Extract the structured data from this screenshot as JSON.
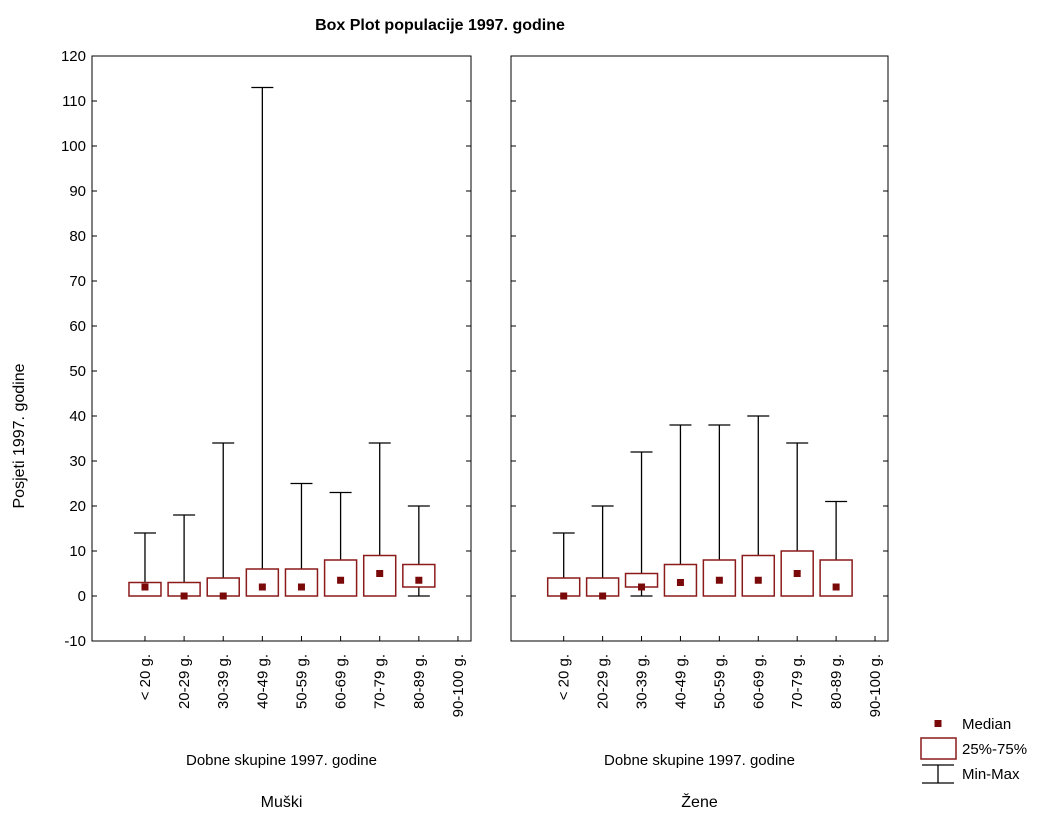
{
  "chart_data": {
    "type": "boxplot",
    "title": "Box Plot populacije 1997. godine",
    "ylabel": "Posjeti 1997. godine",
    "ylim": [
      -10,
      120
    ],
    "yticks": [
      -10,
      0,
      10,
      20,
      30,
      40,
      50,
      60,
      70,
      80,
      90,
      100,
      110,
      120
    ],
    "categories": [
      "< 20 g.",
      "20-29 g.",
      "30-39 g.",
      "40-49 g.",
      "50-59 g.",
      "60-69 g.",
      "70-79 g.",
      "80-89 g.",
      "90-100 g."
    ],
    "panels": [
      {
        "name": "Muški",
        "xlabel": "Dobne skupine 1997. godine",
        "boxes": [
          {
            "min": 0,
            "q1": 0,
            "median": 2,
            "q3": 3,
            "max": 14
          },
          {
            "min": 0,
            "q1": 0,
            "median": 0,
            "q3": 3,
            "max": 18
          },
          {
            "min": 0,
            "q1": 0,
            "median": 0,
            "q3": 4,
            "max": 34
          },
          {
            "min": 0,
            "q1": 0,
            "median": 2,
            "q3": 6,
            "max": 113
          },
          {
            "min": 0,
            "q1": 0,
            "median": 2,
            "q3": 6,
            "max": 25
          },
          {
            "min": 0,
            "q1": 0,
            "median": 3.5,
            "q3": 8,
            "max": 23
          },
          {
            "min": 0,
            "q1": 0,
            "median": 5,
            "q3": 9,
            "max": 34
          },
          {
            "min": 0,
            "q1": 2,
            "median": 3.5,
            "q3": 7,
            "max": 20
          },
          null
        ]
      },
      {
        "name": "Žene",
        "xlabel": "Dobne skupine 1997. godine",
        "boxes": [
          {
            "min": 0,
            "q1": 0,
            "median": 0,
            "q3": 4,
            "max": 14
          },
          {
            "min": 0,
            "q1": 0,
            "median": 0,
            "q3": 4,
            "max": 20
          },
          {
            "min": 0,
            "q1": 2,
            "median": 2,
            "q3": 5,
            "max": 32
          },
          {
            "min": 0,
            "q1": 0,
            "median": 3,
            "q3": 7,
            "max": 38
          },
          {
            "min": 0,
            "q1": 0,
            "median": 3.5,
            "q3": 8,
            "max": 38
          },
          {
            "min": 0,
            "q1": 0,
            "median": 3.5,
            "q3": 9,
            "max": 40
          },
          {
            "min": 0,
            "q1": 0,
            "median": 5,
            "q3": 10,
            "max": 34
          },
          {
            "min": 0,
            "q1": 0,
            "median": 2,
            "q3": 8,
            "max": 21
          },
          null
        ]
      }
    ],
    "legend": {
      "placement": "bottom-right",
      "items": [
        "Median",
        "25%-75%",
        "Min-Max"
      ]
    },
    "colors": {
      "box": "#8b1a1a",
      "median": "#7a0a0a",
      "whisker": "#000000"
    }
  }
}
